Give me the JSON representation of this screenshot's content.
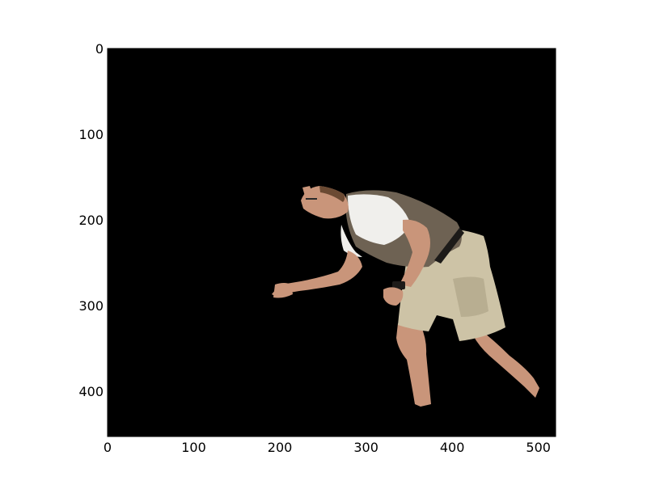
{
  "figure": {
    "background": "#ffffff",
    "image_background": "#000000",
    "subject": "man-in-motion-cutout"
  },
  "axes": {
    "xlim": [
      0,
      520
    ],
    "ylim": [
      453,
      0
    ],
    "y_inverted": true,
    "xticks": [
      "0",
      "100",
      "200",
      "300",
      "400",
      "500"
    ],
    "yticks": [
      "0",
      "100",
      "200",
      "300",
      "400"
    ],
    "tick_color": "#000000"
  },
  "colors": {
    "skin": "#c9957a",
    "skin_shade": "#a86f55",
    "shirt_white": "#f0efec",
    "vest": "#6e6253",
    "shorts": "#cdc3a6",
    "shorts_shade": "#a89d80",
    "belt": "#1d1b19",
    "hair": "#6b4a33"
  }
}
